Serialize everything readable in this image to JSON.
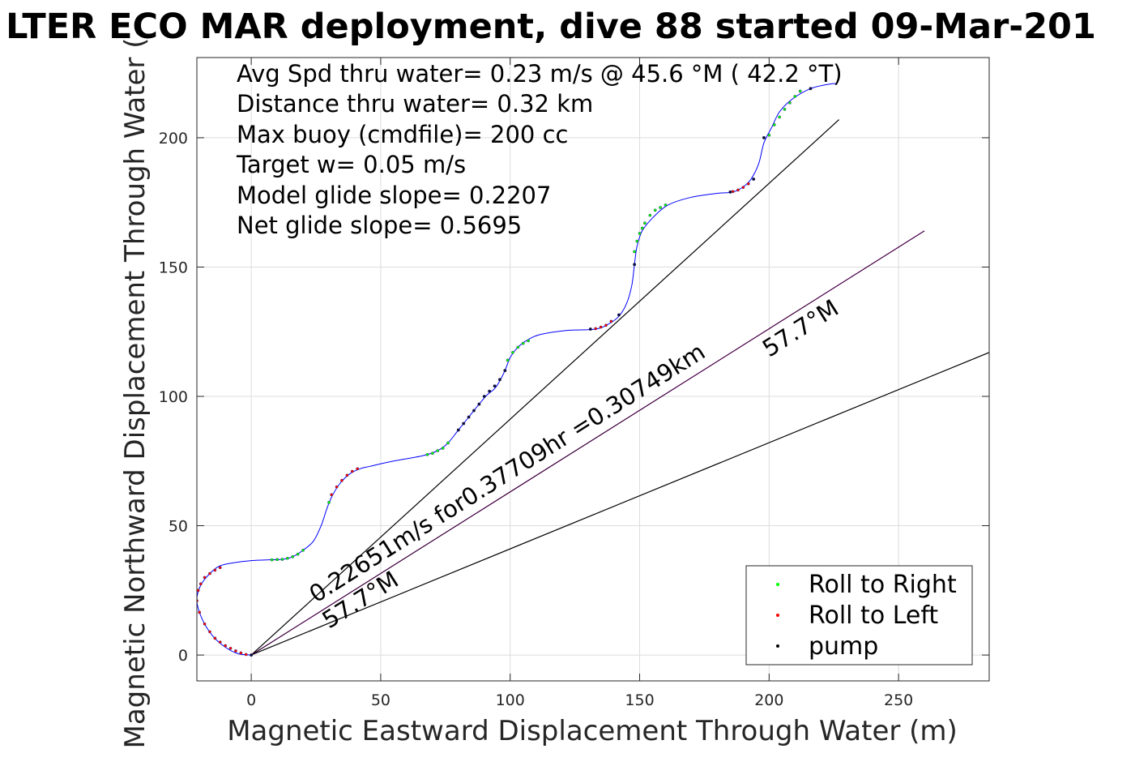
{
  "chart_data": {
    "type": "scatter",
    "title": "LTER ECO MAR deployment, dive 88 started 09-Mar-201",
    "xlabel": "Magnetic Eastward Displacement Through Water (m)",
    "ylabel": "Magnetic Northward Displacement Through Water (",
    "xlim": [
      -21,
      285
    ],
    "ylim": [
      -10,
      231
    ],
    "xticks": [
      0,
      50,
      100,
      150,
      200,
      250
    ],
    "yticks": [
      0,
      50,
      100,
      150,
      200
    ],
    "grid": true,
    "info_lines": [
      "Avg Spd thru water=  0.23 m/s @  45.6 °M ( 42.2 °T)",
      "Distance thru water=  0.32 km",
      "Max buoy (cmdfile)= 200 cc",
      "Target w= 0.05 m/s",
      "Model glide slope= 0.2207",
      "Net glide slope= 0.5695"
    ],
    "annotations": [
      {
        "text": "0.22651m/s for0.37709hr =0.30749km",
        "x": 25,
        "y": 20,
        "angle_deg": 32.3
      },
      {
        "text": "57.7°M",
        "x": 30,
        "y": 10,
        "angle_deg": 32.3
      },
      {
        "text": "57.7°M",
        "x": 200,
        "y": 115,
        "angle_deg": 32.3
      }
    ],
    "lines": [
      {
        "name": "",
        "color": "#000000",
        "points": [
          [
            0,
            0
          ],
          [
            227,
            207
          ]
        ]
      },
      {
        "name": "",
        "color": "#000000",
        "points": [
          [
            0,
            0
          ],
          [
            285,
            117
          ]
        ]
      },
      {
        "name": "",
        "color": "#c000c0",
        "points": [
          [
            0,
            0
          ],
          [
            260,
            164
          ]
        ]
      },
      {
        "name": "",
        "color": "#000000",
        "points": [
          [
            0,
            0
          ],
          [
            260,
            164
          ]
        ]
      }
    ],
    "track": {
      "name": "",
      "color": "#0000ff",
      "points": [
        [
          0,
          0
        ],
        [
          -5,
          0.5
        ],
        [
          -10,
          3
        ],
        [
          -15,
          7.5
        ],
        [
          -19,
          14
        ],
        [
          -21,
          21
        ],
        [
          -19.5,
          27
        ],
        [
          -16,
          31.5
        ],
        [
          -12,
          34.5
        ],
        [
          -6,
          35.8
        ],
        [
          0,
          36.5
        ],
        [
          6,
          36.8
        ],
        [
          12,
          37
        ],
        [
          16,
          38
        ],
        [
          20,
          40.5
        ],
        [
          24,
          44
        ],
        [
          27,
          50
        ],
        [
          29,
          56
        ],
        [
          31,
          61
        ],
        [
          34,
          66
        ],
        [
          38,
          70
        ],
        [
          42,
          72
        ],
        [
          46,
          73
        ],
        [
          55,
          75
        ],
        [
          66,
          77
        ],
        [
          72,
          79
        ],
        [
          76,
          82
        ],
        [
          80,
          87
        ],
        [
          84,
          92
        ],
        [
          88,
          97
        ],
        [
          91,
          100.5
        ],
        [
          94,
          103
        ],
        [
          96,
          106
        ],
        [
          98,
          110
        ],
        [
          100,
          115
        ],
        [
          103,
          119
        ],
        [
          107,
          122
        ],
        [
          112,
          124
        ],
        [
          122,
          125.5
        ],
        [
          133,
          126
        ],
        [
          138,
          128
        ],
        [
          142,
          131
        ],
        [
          145,
          136
        ],
        [
          147,
          143
        ],
        [
          148,
          151
        ],
        [
          149,
          158
        ],
        [
          151,
          164
        ],
        [
          155,
          169
        ],
        [
          161,
          174
        ],
        [
          170,
          177
        ],
        [
          180,
          178.5
        ],
        [
          186,
          179
        ],
        [
          190,
          181
        ],
        [
          193,
          184
        ],
        [
          196,
          190
        ],
        [
          198,
          198
        ],
        [
          201,
          204
        ],
        [
          204,
          210
        ],
        [
          209,
          215
        ],
        [
          216,
          219
        ],
        [
          222,
          220.5
        ],
        [
          226,
          221
        ]
      ]
    },
    "series": [
      {
        "name": "Roll to Right",
        "color": "#00ff00",
        "marker": "point",
        "x": [
          8,
          10,
          12,
          14,
          16,
          18,
          20,
          30,
          68,
          70,
          72,
          74,
          76,
          99,
          101,
          103,
          105,
          107,
          148,
          149,
          150,
          151,
          152,
          154,
          156,
          158,
          160,
          200,
          202,
          204,
          206,
          208,
          210,
          212
        ],
        "y": [
          36.8,
          36.9,
          37,
          37.4,
          38,
          39,
          40.5,
          59,
          77.5,
          78,
          79,
          80,
          82,
          114,
          117,
          119,
          120.5,
          121.5,
          156,
          160,
          163,
          165,
          167,
          170,
          172,
          173,
          174,
          201,
          205,
          208,
          211,
          213.5,
          216,
          218
        ]
      },
      {
        "name": "Roll to Left",
        "color": "#ff0000",
        "marker": "point",
        "x": [
          -2,
          -4,
          -6,
          -8,
          -10,
          -12,
          -14,
          -16,
          -18,
          -20,
          -21,
          -20.5,
          -19.5,
          -18,
          -16,
          -14,
          -12,
          31,
          33,
          35,
          37,
          39,
          41,
          133,
          135,
          137,
          139,
          186,
          188,
          190,
          192
        ],
        "y": [
          0.2,
          0.8,
          1.6,
          2.6,
          3.6,
          5,
          6.5,
          9,
          12,
          16.5,
          21,
          25,
          27.5,
          30,
          31.5,
          32.8,
          33.8,
          62,
          65,
          67.5,
          69.5,
          71,
          72,
          126.2,
          126.8,
          127.5,
          129,
          179.2,
          179.8,
          180.8,
          182.2
        ]
      },
      {
        "name": "pump",
        "color": "#000000",
        "marker": "point",
        "x": [
          0,
          80,
          82,
          84,
          86,
          88,
          90,
          92,
          94,
          96,
          98,
          131,
          142,
          148,
          185,
          194,
          198,
          216
        ],
        "y": [
          0,
          87,
          89.5,
          92,
          94.5,
          97,
          100,
          102,
          104,
          106.5,
          110,
          126,
          131.5,
          151,
          179,
          184,
          200,
          219
        ]
      }
    ],
    "legend": {
      "placement": "bottom-right"
    }
  }
}
